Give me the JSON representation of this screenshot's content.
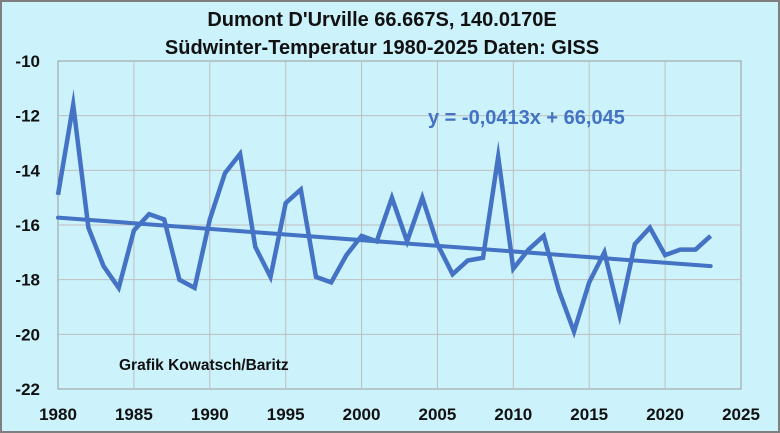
{
  "chart_data": {
    "type": "line",
    "title": "Dumont D'Urville 66.667S, 140.0170E",
    "subtitle": "Südwinter-Temperatur 1980-2025 Daten: GISS",
    "xlabel": "",
    "ylabel": "",
    "xlim": [
      1980,
      2025
    ],
    "ylim": [
      -22,
      -10
    ],
    "x_ticks": [
      1980,
      1985,
      1990,
      1995,
      2000,
      2005,
      2010,
      2015,
      2020,
      2025
    ],
    "y_ticks": [
      -10,
      -12,
      -14,
      -16,
      -18,
      -20,
      -22
    ],
    "grid": true,
    "colors": {
      "series": "#4472c4",
      "background": "#ccf2fb",
      "grid": "#bfbfbf",
      "equation": "#4472c4"
    },
    "series": [
      {
        "x": [
          1980,
          1981,
          1982,
          1983,
          1984,
          1985,
          1986,
          1987,
          1988,
          1989,
          1990,
          1991,
          1992,
          1993,
          1994,
          1995,
          1996,
          1997,
          1998,
          1999,
          2000,
          2001,
          2002,
          2003,
          2004,
          2005,
          2006,
          2007,
          2008,
          2009,
          2010,
          2011,
          2012,
          2013,
          2014,
          2015,
          2016,
          2017,
          2018,
          2019,
          2020,
          2021,
          2022,
          2023
        ],
        "values": [
          -14.9,
          -11.6,
          -16.1,
          -17.5,
          -18.3,
          -16.2,
          -15.6,
          -15.8,
          -18.0,
          -18.3,
          -15.8,
          -14.1,
          -13.4,
          -16.8,
          -17.9,
          -15.2,
          -14.7,
          -17.9,
          -18.1,
          -17.1,
          -16.4,
          -16.6,
          -15.0,
          -16.6,
          -15.0,
          -16.7,
          -17.8,
          -17.3,
          -17.2,
          -13.5,
          -17.6,
          -16.9,
          -16.4,
          -18.4,
          -19.9,
          -18.1,
          -17.0,
          -19.3,
          -16.7,
          -16.1,
          -17.1,
          -16.9,
          -16.9,
          -16.4
        ]
      }
    ],
    "trendline": {
      "equation": "y = -0,0413x + 66,045",
      "slope": -0.0413,
      "intercept": 66.045
    },
    "annotations": [
      "Grafik Kowatsch/Baritz"
    ]
  }
}
